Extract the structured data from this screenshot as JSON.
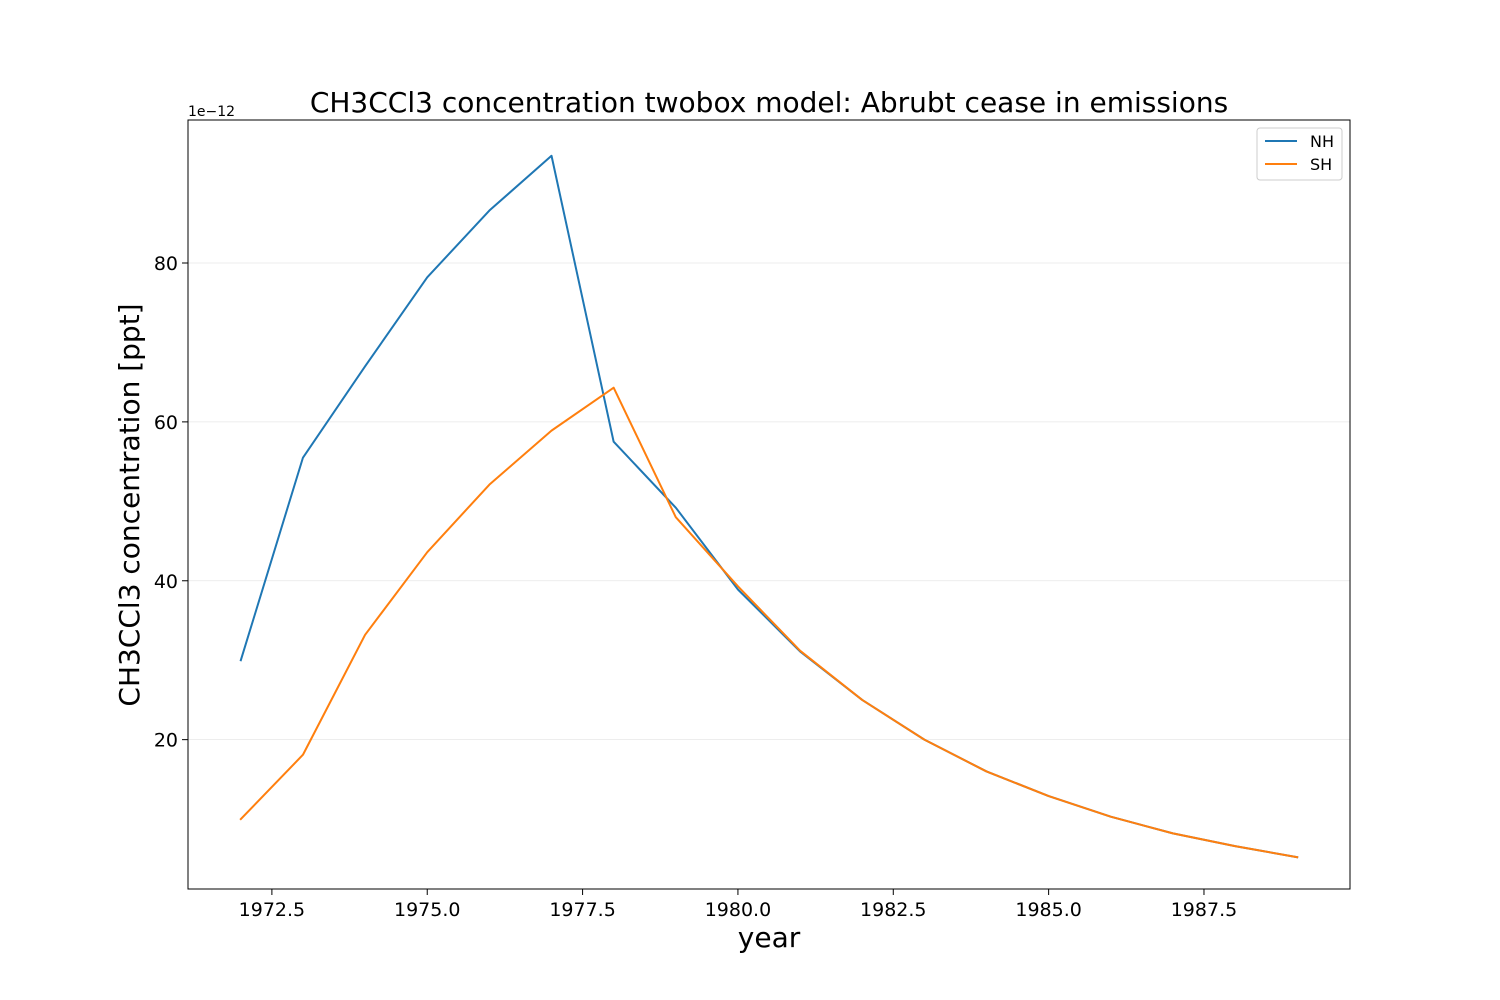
{
  "chart_data": {
    "type": "line",
    "title": "CH3CCl3 concentration twobox model: Abrubt cease in emissions",
    "xlabel": "year",
    "ylabel": "CH3CCl3 concentration [ppt]",
    "y_offset_label": "1e−12",
    "xlim": [
      1971.15,
      1989.85
    ],
    "ylim": [
      1.2,
      98
    ],
    "x_ticks": [
      1972.5,
      1975.0,
      1977.5,
      1980.0,
      1982.5,
      1985.0,
      1987.5
    ],
    "x_tick_labels": [
      "1972.5",
      "1975.0",
      "1977.5",
      "1980.0",
      "1982.5",
      "1985.0",
      "1987.5"
    ],
    "y_ticks": [
      20,
      40,
      60,
      80
    ],
    "y_tick_labels": [
      "20",
      "40",
      "60",
      "80"
    ],
    "grid": "y-axis major",
    "legend_position": "top-right",
    "x": [
      1972,
      1973,
      1974,
      1975,
      1976,
      1977,
      1978,
      1979,
      1980,
      1981,
      1982,
      1983,
      1984,
      1985,
      1986,
      1987,
      1988,
      1989
    ],
    "series": [
      {
        "name": "NH",
        "color": "#1f77b4",
        "values": [
          30.0,
          55.5,
          67.0,
          78.2,
          86.6,
          93.5,
          57.5,
          49.2,
          38.9,
          31.1,
          25.0,
          20.0,
          16.0,
          12.9,
          10.3,
          8.2,
          6.6,
          5.2
        ]
      },
      {
        "name": "SH",
        "color": "#ff7f0e",
        "values": [
          10.0,
          18.1,
          33.2,
          43.6,
          52.1,
          58.9,
          64.3,
          48.0,
          39.3,
          31.2,
          25.0,
          20.0,
          16.0,
          12.9,
          10.3,
          8.2,
          6.6,
          5.2
        ]
      }
    ]
  }
}
